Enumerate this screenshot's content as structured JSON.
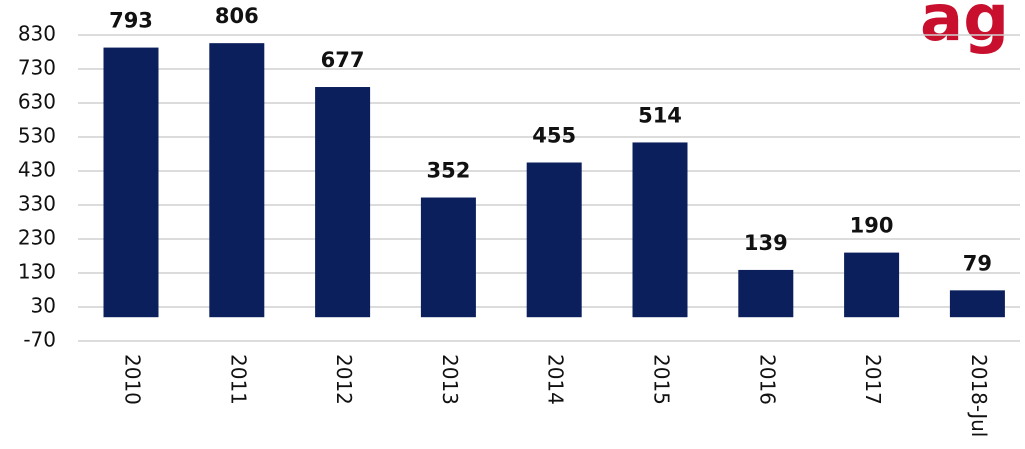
{
  "chart_data": {
    "type": "bar",
    "categories": [
      "2010",
      "2011",
      "2012",
      "2013",
      "2014",
      "2015",
      "2016",
      "2017",
      "2018-Jul"
    ],
    "values": [
      793,
      806,
      677,
      352,
      455,
      514,
      139,
      190,
      79
    ],
    "color": "#0b1f5c",
    "ylim": [
      -70,
      830
    ],
    "yticks": [
      -70,
      30,
      130,
      230,
      330,
      430,
      530,
      630,
      730,
      830
    ],
    "grid": true
  },
  "logo": "ag"
}
